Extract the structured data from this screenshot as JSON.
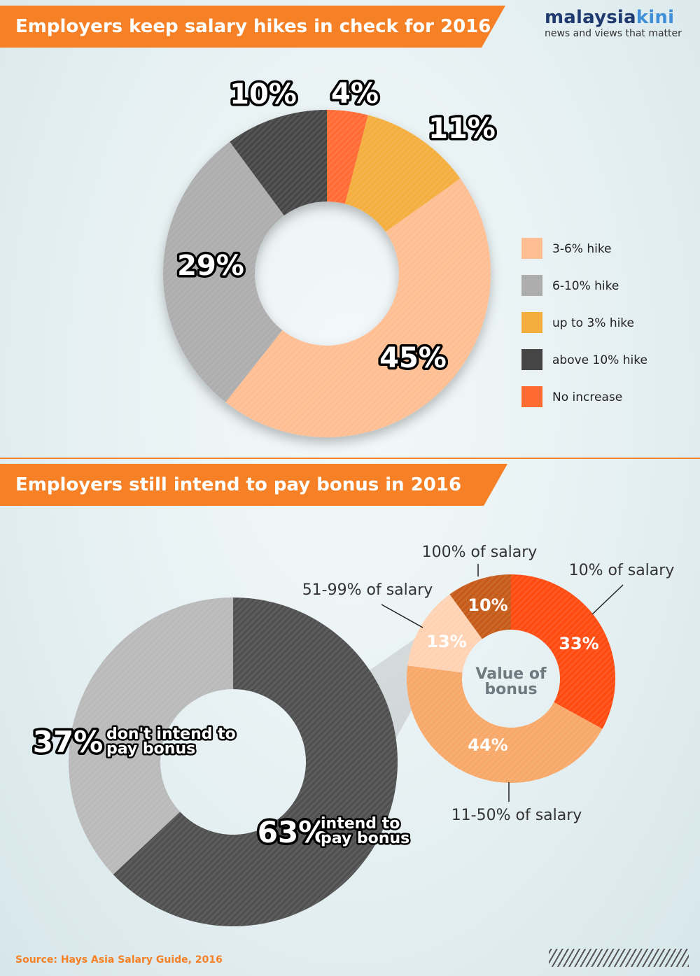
{
  "header": {
    "title1": "Employers keep salary hikes in check for 2016",
    "title2": "Employers still intend to pay bonus in 2016",
    "logo_main": "malaysia",
    "logo_accent": "kini",
    "logo_tagline": "news and views that matter"
  },
  "source": "Source: Hays Asia Salary Guide, 2016",
  "chart_data": [
    {
      "type": "pie",
      "donut": true,
      "title": "Employers keep salary hikes in check for 2016",
      "categories": [
        "No increase",
        "up to 3% hike",
        "3-6% hike",
        "6-10% hike",
        "above 10% hike"
      ],
      "values": [
        4,
        11,
        45,
        29,
        10
      ],
      "value_labels": [
        "4%",
        "11%",
        "45%",
        "29%",
        "10%"
      ],
      "colors": [
        "#ff6a33",
        "#f4ae3d",
        "#ffbe92",
        "#adadad",
        "#454545"
      ],
      "legend": {
        "placement": "right",
        "items": [
          {
            "label": "3-6% hike",
            "color": "#ffbe92"
          },
          {
            "label": "6-10% hike",
            "color": "#adadad"
          },
          {
            "label": "up to 3% hike",
            "color": "#f4ae3d"
          },
          {
            "label": "above 10% hike",
            "color": "#454545"
          },
          {
            "label": "No increase",
            "color": "#ff6a33"
          }
        ]
      }
    },
    {
      "type": "pie",
      "donut": true,
      "title": "Employers still intend to pay bonus in 2016",
      "categories": [
        "intend to pay bonus",
        "don't intend to pay bonus"
      ],
      "values": [
        63,
        37
      ],
      "value_labels": [
        "63%",
        "37%"
      ],
      "text_lines": [
        [
          "intend to",
          "pay bonus"
        ],
        [
          "don't intend to",
          "pay bonus"
        ]
      ],
      "colors": [
        "#4f4f4f",
        "#b9b9b9"
      ]
    },
    {
      "type": "pie",
      "donut": true,
      "center_label": [
        "Value of",
        "bonus"
      ],
      "categories": [
        "10% of salary",
        "11-50% of salary",
        "51-99% of salary",
        "100% of salary"
      ],
      "values": [
        33,
        44,
        13,
        10
      ],
      "value_labels": [
        "33%",
        "44%",
        "13%",
        "10%"
      ],
      "colors": [
        "#ff4a0f",
        "#f7a868",
        "#ffd2b3",
        "#c55a18"
      ]
    }
  ]
}
